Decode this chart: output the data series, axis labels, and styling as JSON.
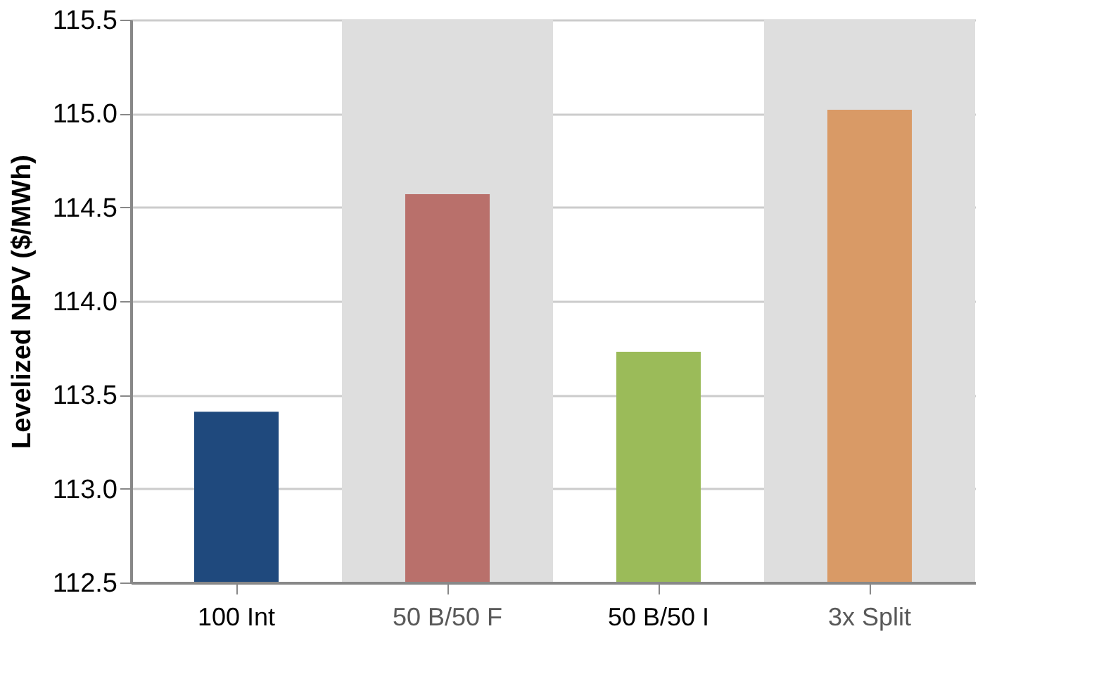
{
  "chart_data": {
    "type": "bar",
    "ylabel": "Levelized NPV ($/MWh)",
    "categories": [
      "100 Int",
      "50 B/50 F",
      "50 B/50 I",
      "3x Split"
    ],
    "values": [
      113.41,
      114.57,
      113.73,
      115.02
    ],
    "colors": [
      "#1f497d",
      "#b9706b",
      "#9bbb59",
      "#d99a66"
    ],
    "ylim": [
      112.5,
      115.5
    ],
    "yticks": [
      {
        "value": 112.5,
        "label": "112.5"
      },
      {
        "value": 113,
        "label": "113.0"
      },
      {
        "value": 113.5,
        "label": "113.5"
      },
      {
        "value": 114,
        "label": "114.0"
      },
      {
        "value": 114.5,
        "label": "114.5"
      },
      {
        "value": 115,
        "label": "115.0"
      },
      {
        "value": 115.5,
        "label": "115.5"
      }
    ],
    "grid": "y",
    "bands": [
      {
        "axis": "x",
        "from": "50 B/50 F",
        "to": "50 B/50 F",
        "color": "#dedede"
      },
      {
        "axis": "x",
        "from": "3x Split",
        "to": "3x Split",
        "color": "#dedede"
      }
    ]
  }
}
